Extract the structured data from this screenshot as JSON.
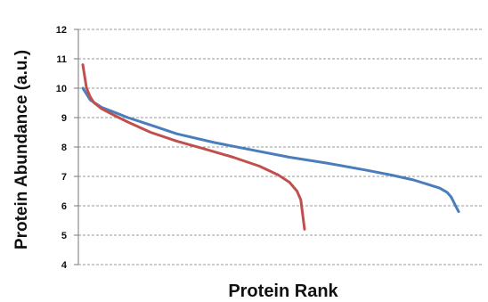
{
  "chart_data": {
    "type": "line",
    "title": "",
    "xlabel": "Protein Rank",
    "ylabel": "Protein Abundance (a.u.)",
    "ylim": [
      4,
      12
    ],
    "yticks": [
      4,
      5,
      6,
      7,
      8,
      9,
      10,
      11,
      12
    ],
    "grid": true,
    "legend": "none",
    "series": [
      {
        "color": "#4A7EBB",
        "x": [
          0,
          2,
          5,
          8,
          12,
          18,
          25,
          35,
          45,
          55,
          65,
          75,
          82,
          88,
          92,
          95,
          97,
          98,
          99,
          100
        ],
        "y": [
          10.0,
          9.6,
          9.35,
          9.2,
          9.0,
          8.75,
          8.45,
          8.15,
          7.9,
          7.65,
          7.45,
          7.22,
          7.05,
          6.88,
          6.72,
          6.6,
          6.45,
          6.3,
          6.05,
          5.8
        ]
      },
      {
        "color": "#C0504D",
        "x": [
          0,
          1,
          2,
          3,
          5,
          8,
          12,
          18,
          25,
          32,
          40,
          47,
          52,
          55,
          57,
          58,
          58.5,
          59
        ],
        "y": [
          10.8,
          10.0,
          9.7,
          9.5,
          9.3,
          9.1,
          8.85,
          8.5,
          8.2,
          7.95,
          7.65,
          7.35,
          7.05,
          6.8,
          6.5,
          6.2,
          5.7,
          5.2
        ]
      }
    ]
  }
}
